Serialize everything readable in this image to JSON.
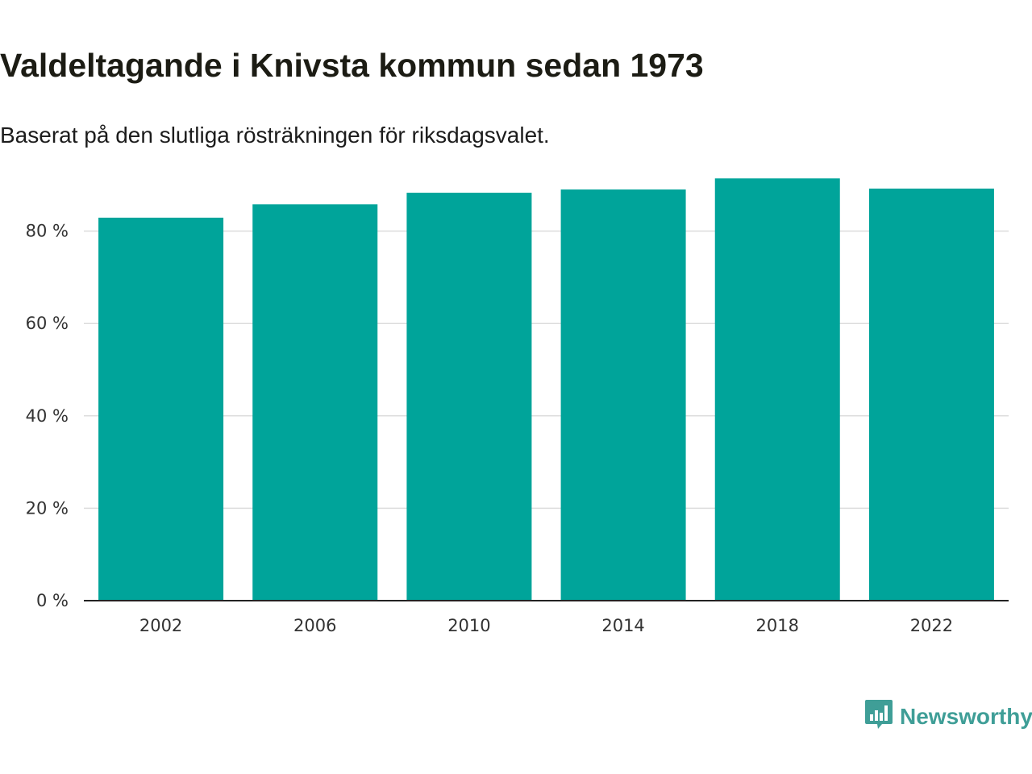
{
  "header": {
    "title": "Valdeltagande i Knivsta kommun sedan 1973",
    "subtitle": "Baserat på den slutliga rösträkningen för riksdagsvalet."
  },
  "colors": {
    "bar": "#00a49a",
    "grid": "#dcdcdc",
    "axis": "#222222",
    "brand": "#3f9e97"
  },
  "brand": {
    "name": "Newsworthy",
    "icon": "newsworthy-chart-icon"
  },
  "chart_data": {
    "type": "bar",
    "categories": [
      "2002",
      "2006",
      "2010",
      "2014",
      "2018",
      "2022"
    ],
    "values": [
      82.9,
      85.8,
      88.3,
      89.0,
      91.4,
      89.2
    ],
    "y_ticks": [
      0,
      20,
      40,
      60,
      80
    ],
    "y_tick_labels": [
      "0 %",
      "20 %",
      "40 %",
      "60 %",
      "80 %"
    ],
    "ylim": [
      0,
      100
    ],
    "unit": "%",
    "xlabel": "",
    "ylabel": "",
    "grid": true,
    "legend": "none"
  }
}
